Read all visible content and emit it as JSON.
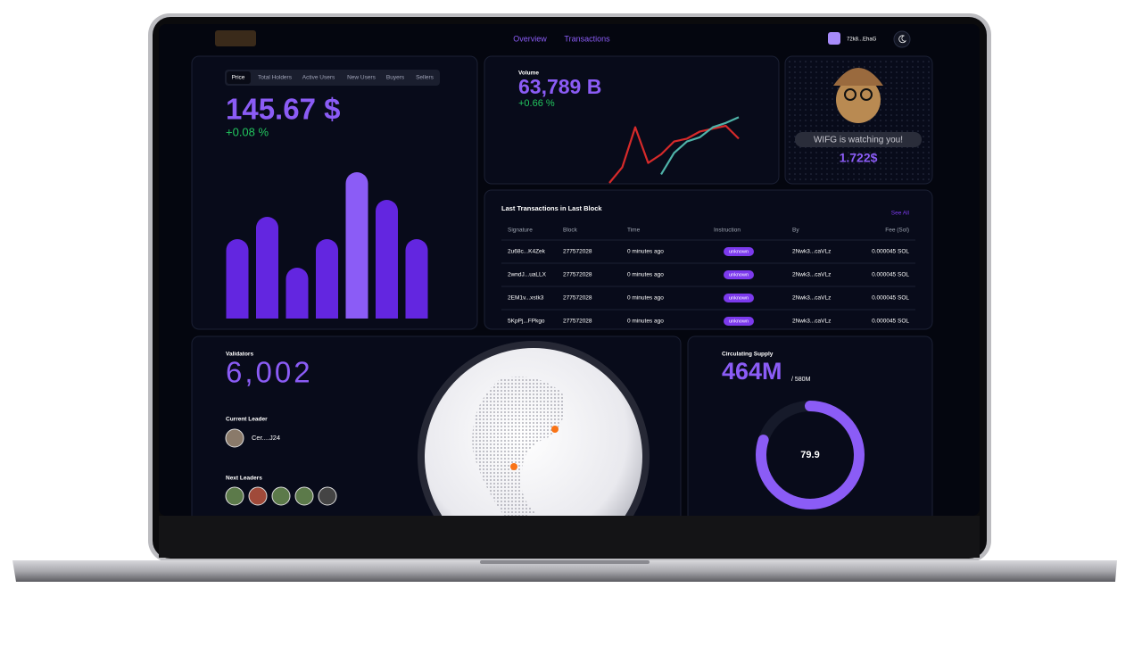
{
  "nav": {
    "links": [
      "Overview",
      "Transactions"
    ],
    "wallet": "72k8...EhaG"
  },
  "price_card": {
    "tabs": [
      "Price",
      "Total Holders",
      "Active Users",
      "New Users",
      "Buyers",
      "Sellers"
    ],
    "value": "145.67 $",
    "change": "+0.08 %",
    "chart": {
      "type": "bar",
      "values": [
        89,
        114,
        57,
        89,
        164,
        133,
        89
      ],
      "colors": [
        "#6326e0",
        "#6326e0",
        "#6326e0",
        "#6326e0",
        "#8b5cf6",
        "#6326e0",
        "#6326e0"
      ],
      "ylim": [
        0,
        170
      ]
    }
  },
  "volume_card": {
    "label": "Volume",
    "value": "63,789 B",
    "change": "+0.66 %",
    "chart": {
      "type": "line",
      "x": [
        0,
        1,
        2,
        3,
        4,
        5,
        6,
        7,
        8,
        9,
        10
      ],
      "xlim": [
        0,
        10
      ],
      "ylim": [
        0,
        100
      ],
      "series": [
        {
          "color": "#d62a2a",
          "values": [
            0,
            22,
            78,
            28,
            40,
            58,
            62,
            72,
            76,
            80,
            62
          ]
        },
        {
          "color": "#4fb3a9",
          "values": [
            null,
            null,
            null,
            null,
            12,
            42,
            58,
            64,
            78,
            84,
            92
          ]
        }
      ]
    }
  },
  "mascot": {
    "caption": "WIFG is watching you!",
    "price": "1.722$"
  },
  "transactions": {
    "title": "Last Transactions in Last Block",
    "see_all": "See All",
    "columns": [
      "Signature",
      "Block",
      "Time",
      "Instruction",
      "By",
      "Fee (Sol)"
    ],
    "rows": [
      [
        "2u68c...K4Zek",
        "277572028",
        "0 minutes ago",
        "unknown",
        "2Nwk3...caVLz",
        "0.000045 SOL"
      ],
      [
        "2wndJ...uaLLX",
        "277572028",
        "0 minutes ago",
        "unknown",
        "2Nwk3...caVLz",
        "0.000045 SOL"
      ],
      [
        "2EM1v...xstk3",
        "277572028",
        "0 minutes ago",
        "unknown",
        "2Nwk3...caVLz",
        "0.000045 SOL"
      ],
      [
        "5KpPj...FPkgo",
        "277572028",
        "0 minutes ago",
        "unknown",
        "2Nwk3...caVLz",
        "0.000045 SOL"
      ]
    ]
  },
  "validators": {
    "label": "Validators",
    "value": "6,002",
    "current_leader_label": "Current Leader",
    "current_leader": "Cer....J24",
    "next_leaders_label": "Next Leaders"
  },
  "supply": {
    "label": "Circulating Supply",
    "value": "464M",
    "total": "/ 580M",
    "percent": 79.9,
    "color": "#8b5cf6"
  }
}
